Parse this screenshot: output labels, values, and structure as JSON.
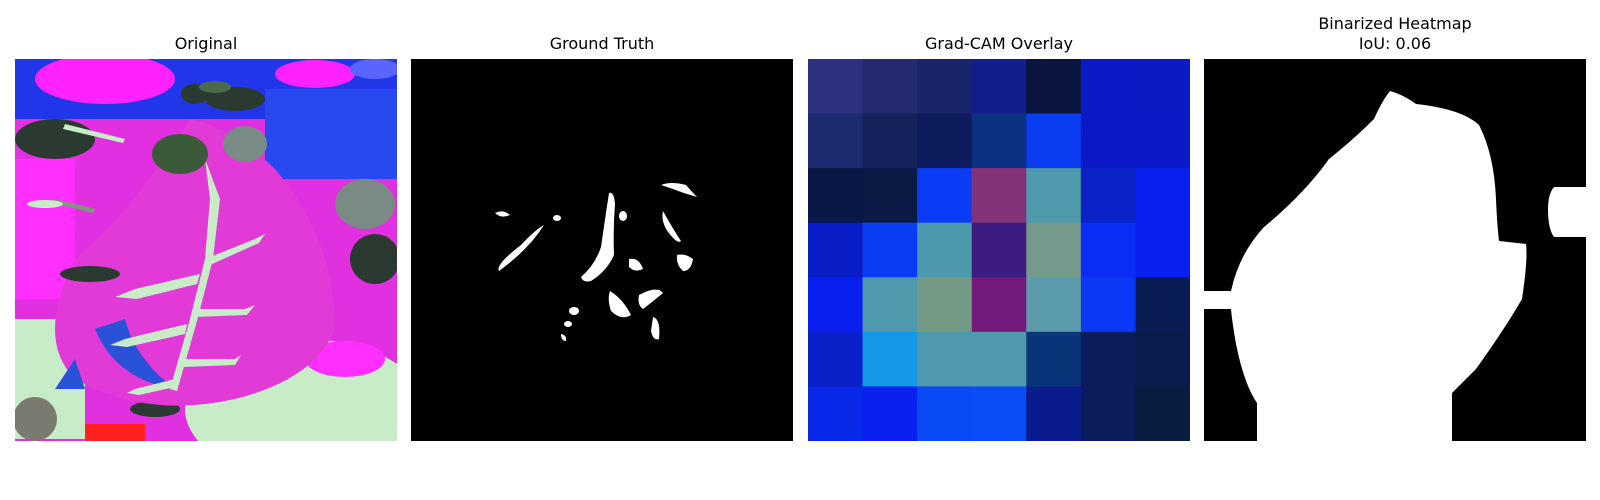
{
  "panels": [
    {
      "title": "Original"
    },
    {
      "title": "Ground Truth"
    },
    {
      "title": "Grad-CAM Overlay"
    },
    {
      "title": "Binarized Heatmap",
      "subtitle": "IoU: 0.06"
    }
  ],
  "gradcam": {
    "grid": [
      [
        "#2c3080",
        "#232a72",
        "#1a2468",
        "#121e8c",
        "#0a1640",
        "#0a1ac8",
        "#0a1ac4"
      ],
      [
        "#1c2a70",
        "#15215a",
        "#0e1c5e",
        "#0a3280",
        "#0a3cf0",
        "#0a18c8",
        "#0a18c8"
      ],
      [
        "#0a1848",
        "#0a1a44",
        "#0a3cf5",
        "#843278",
        "#4e9aac",
        "#0a22c8",
        "#0a20f0"
      ],
      [
        "#0a1ec8",
        "#0a3ef5",
        "#4c98ac",
        "#3c1c80",
        "#749a8c",
        "#0a2ef5",
        "#0a20f0"
      ],
      [
        "#0a20f0",
        "#4e9aac",
        "#749a86",
        "#741a7c",
        "#5a9aaa",
        "#0a38f5",
        "#0a1c54"
      ],
      [
        "#0a20c8",
        "#1498e8",
        "#4e9aac",
        "#4e9aac",
        "#0a3478",
        "#0a1c5c",
        "#0a1c4c"
      ],
      [
        "#0a28e8",
        "#0a20f0",
        "#0a4af5",
        "#0a4cf5",
        "#0a1c8c",
        "#0a1c5c",
        "#0a1c40"
      ]
    ]
  }
}
